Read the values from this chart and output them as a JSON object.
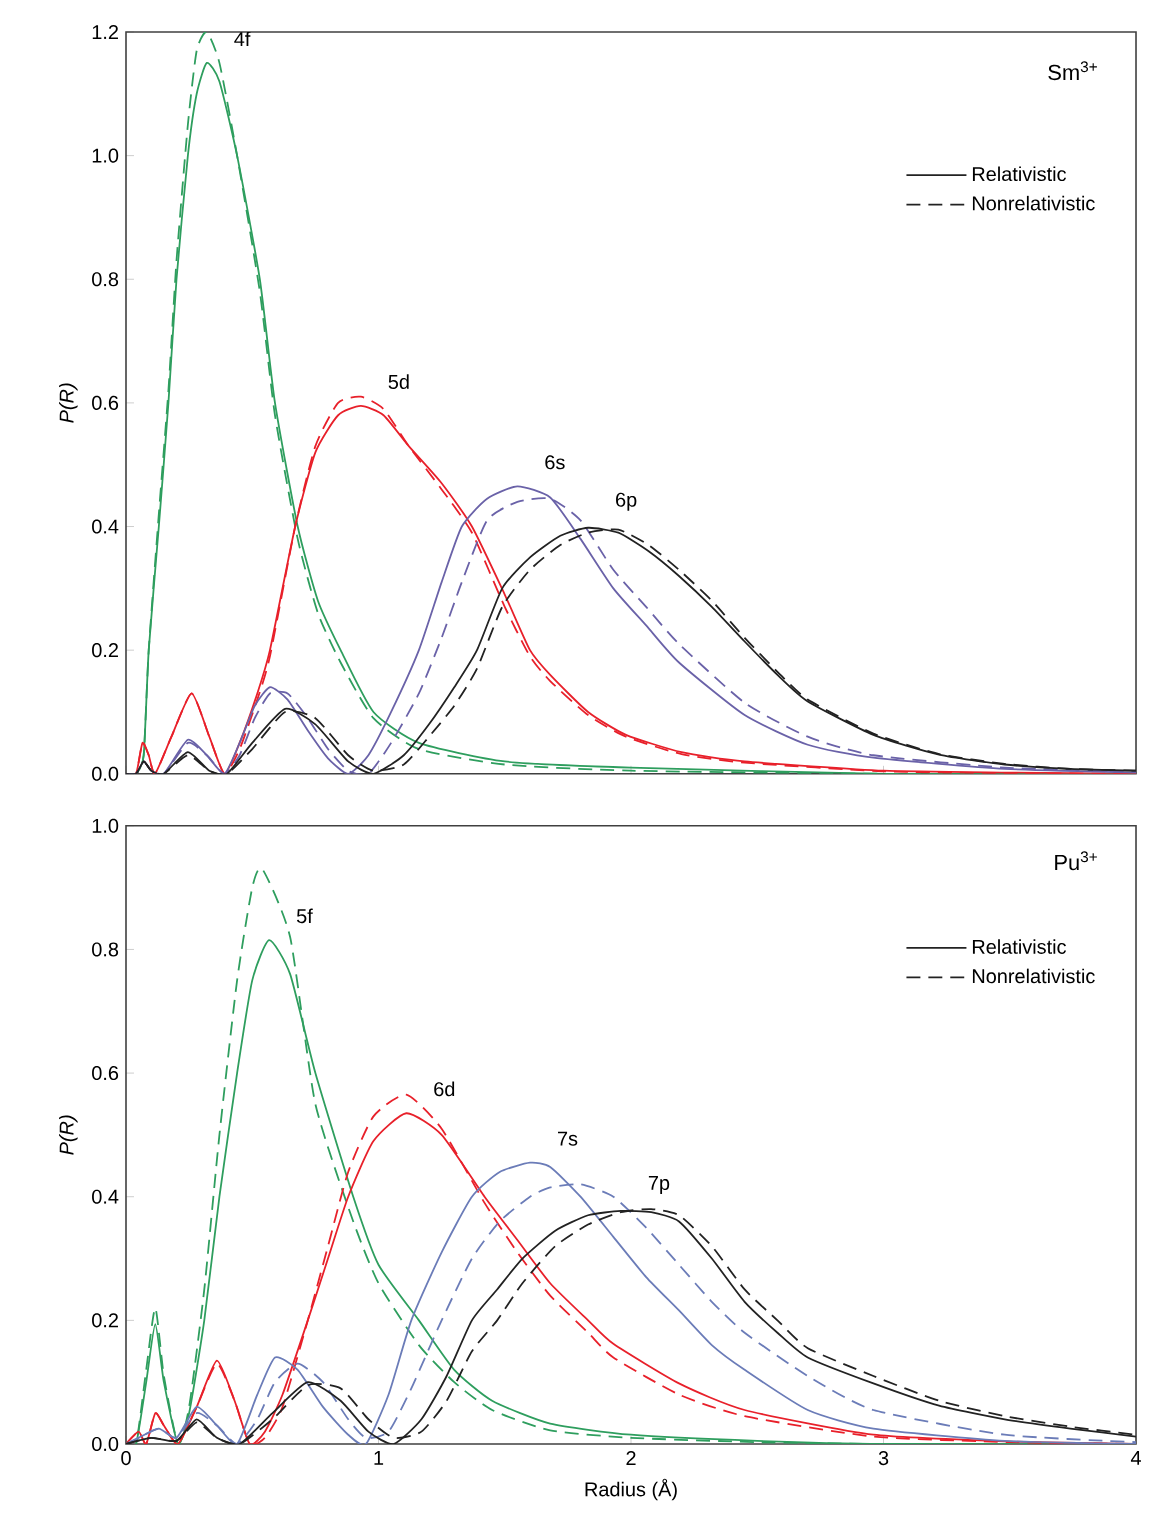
{
  "chart_data": [
    {
      "type": "line",
      "ylabel": "P(R)",
      "xlim": [
        0,
        4
      ],
      "ylim": [
        0,
        1.2
      ],
      "xticks": [
        0,
        1,
        2,
        3,
        4
      ],
      "tick_labels": "y",
      "legend": "top right",
      "yticks": [
        {
          "value": 0,
          "label": "0.0"
        },
        {
          "value": 0.2,
          "label": "0.2"
        },
        {
          "value": 0.4,
          "label": "0.4"
        },
        {
          "value": 0.6,
          "label": "0.6"
        },
        {
          "value": 0.8,
          "label": "0.8"
        },
        {
          "value": 1.0,
          "label": "1.0"
        },
        {
          "value": 1.2,
          "label": "1.2"
        }
      ],
      "annotations": [
        "Sm$^{3+}$",
        "4f",
        "5d",
        "6s",
        "6p"
      ],
      "series": [
        {
          "color": "#2e9e5e",
          "line_style": "solid",
          "x": [
            0,
            0.04,
            0.07,
            0.09,
            0.13,
            0.168,
            0.2,
            0.245,
            0.28,
            0.32,
            0.37,
            0.44,
            0.53,
            0.59,
            0.68,
            0.76,
            0.85,
            0.98,
            1.16,
            1.5,
            2.0,
            3.0,
            4.0
          ],
          "values": [
            0,
            0,
            0.03,
            0.2,
            0.4,
            0.6,
            0.8,
            1.0,
            1.1,
            1.15,
            1.12,
            1.0,
            0.8,
            0.6,
            0.4,
            0.28,
            0.2,
            0.1,
            0.05,
            0.02,
            0.01,
            0,
            0
          ]
        },
        {
          "color": "#2e9e5e",
          "line_style": "dashed",
          "x": [
            0,
            0.04,
            0.07,
            0.09,
            0.13,
            0.168,
            0.2,
            0.245,
            0.28,
            0.32,
            0.37,
            0.44,
            0.53,
            0.59,
            0.68,
            0.76,
            0.85,
            0.98,
            1.16,
            1.5,
            2.0,
            3.0,
            4.0
          ],
          "values": [
            0,
            0,
            0.03,
            0.2,
            0.42,
            0.62,
            0.83,
            1.05,
            1.17,
            1.2,
            1.15,
            1.0,
            0.78,
            0.58,
            0.38,
            0.26,
            0.18,
            0.09,
            0.04,
            0.015,
            0.005,
            0,
            0
          ]
        },
        {
          "color": "#e8202a",
          "line_style": "solid",
          "x": [
            0,
            0.04,
            0.065,
            0.09,
            0.115,
            0.18,
            0.26,
            0.33,
            0.39,
            0.45,
            0.52,
            0.57,
            0.67,
            0.75,
            0.84,
            0.93,
            1.02,
            1.12,
            1.25,
            1.37,
            1.5,
            1.6,
            1.68,
            1.83,
            1.98,
            2.2,
            2.45,
            3.0,
            3.5,
            4.0
          ],
          "values": [
            0,
            0,
            0.05,
            0.03,
            0,
            0.06,
            0.13,
            0.06,
            0,
            0.05,
            0.13,
            0.2,
            0.4,
            0.52,
            0.58,
            0.595,
            0.58,
            0.53,
            0.47,
            0.4,
            0.29,
            0.2,
            0.16,
            0.1,
            0.063,
            0.035,
            0.02,
            0.005,
            0.002,
            0
          ]
        },
        {
          "color": "#e8202a",
          "line_style": "dashed",
          "x": [
            0,
            0.04,
            0.065,
            0.09,
            0.115,
            0.18,
            0.26,
            0.33,
            0.39,
            0.45,
            0.52,
            0.57,
            0.67,
            0.75,
            0.84,
            0.93,
            1.02,
            1.12,
            1.25,
            1.37,
            1.5,
            1.6,
            1.68,
            1.83,
            1.98,
            2.2,
            2.45,
            3.0,
            3.5,
            4.0
          ],
          "values": [
            0,
            0,
            0.05,
            0.03,
            0,
            0.06,
            0.13,
            0.06,
            0,
            0.04,
            0.12,
            0.19,
            0.4,
            0.53,
            0.6,
            0.61,
            0.59,
            0.53,
            0.46,
            0.39,
            0.27,
            0.19,
            0.15,
            0.095,
            0.06,
            0.032,
            0.018,
            0.004,
            0.001,
            0
          ]
        },
        {
          "color": "#6a62a8",
          "line_style": "solid",
          "x": [
            0,
            0.04,
            0.07,
            0.1,
            0.15,
            0.245,
            0.32,
            0.39,
            0.45,
            0.51,
            0.57,
            0.64,
            0.72,
            0.8,
            0.88,
            0.96,
            1.05,
            1.16,
            1.25,
            1.33,
            1.43,
            1.55,
            1.68,
            1.8,
            1.93,
            2.06,
            2.19,
            2.45,
            2.7,
            2.96,
            3.48,
            4.0
          ],
          "values": [
            0,
            0,
            0.02,
            0.005,
            0,
            0.055,
            0.03,
            0,
            0.05,
            0.11,
            0.14,
            0.12,
            0.07,
            0.025,
            0,
            0.03,
            0.1,
            0.2,
            0.31,
            0.4,
            0.445,
            0.465,
            0.447,
            0.38,
            0.3,
            0.24,
            0.18,
            0.095,
            0.047,
            0.026,
            0.008,
            0.002
          ]
        },
        {
          "color": "#6a62a8",
          "line_style": "dashed",
          "x": [
            0,
            0.04,
            0.07,
            0.1,
            0.15,
            0.245,
            0.32,
            0.39,
            0.45,
            0.51,
            0.57,
            0.64,
            0.72,
            0.8,
            0.88,
            0.96,
            1.05,
            1.16,
            1.25,
            1.33,
            1.43,
            1.55,
            1.68,
            1.8,
            1.93,
            2.06,
            2.19,
            2.45,
            2.7,
            2.96,
            3.48,
            4.0
          ],
          "values": [
            0,
            0,
            0.02,
            0.005,
            0,
            0.05,
            0.03,
            0,
            0.03,
            0.09,
            0.13,
            0.13,
            0.09,
            0.04,
            0.005,
            0,
            0.05,
            0.13,
            0.22,
            0.31,
            0.41,
            0.44,
            0.445,
            0.41,
            0.33,
            0.27,
            0.21,
            0.115,
            0.06,
            0.03,
            0.01,
            0.003
          ]
        },
        {
          "name": "Relativistic",
          "color": "#222222",
          "line_style": "solid",
          "x": [
            0,
            0.04,
            0.07,
            0.1,
            0.15,
            0.245,
            0.33,
            0.4,
            0.5,
            0.63,
            0.75,
            0.88,
            0.98,
            1.1,
            1.2,
            1.3,
            1.39,
            1.49,
            1.6,
            1.72,
            1.83,
            1.95,
            2.07,
            2.19,
            2.32,
            2.45,
            2.58,
            2.7,
            2.96,
            3.22,
            3.48,
            3.74,
            4.0
          ],
          "values": [
            0,
            0,
            0.02,
            0.005,
            0,
            0.035,
            0.005,
            0,
            0.05,
            0.105,
            0.08,
            0.02,
            0,
            0.03,
            0.08,
            0.14,
            0.2,
            0.3,
            0.35,
            0.385,
            0.398,
            0.39,
            0.36,
            0.32,
            0.27,
            0.214,
            0.16,
            0.117,
            0.063,
            0.031,
            0.015,
            0.008,
            0.005
          ]
        },
        {
          "name": "Nonrelativistic",
          "color": "#222222",
          "line_style": "dashed",
          "x": [
            0,
            0.04,
            0.07,
            0.1,
            0.15,
            0.245,
            0.33,
            0.4,
            0.5,
            0.63,
            0.75,
            0.88,
            0.98,
            1.1,
            1.2,
            1.3,
            1.39,
            1.49,
            1.6,
            1.72,
            1.83,
            1.95,
            2.07,
            2.19,
            2.32,
            2.45,
            2.58,
            2.7,
            2.96,
            3.22,
            3.48,
            3.74,
            4.0
          ],
          "values": [
            0,
            0,
            0.02,
            0.005,
            0,
            0.03,
            0.005,
            0,
            0.04,
            0.1,
            0.09,
            0.03,
            0.005,
            0.015,
            0.06,
            0.11,
            0.17,
            0.27,
            0.33,
            0.37,
            0.39,
            0.395,
            0.37,
            0.33,
            0.28,
            0.22,
            0.165,
            0.12,
            0.065,
            0.032,
            0.016,
            0.008,
            0.005
          ]
        }
      ]
    },
    {
      "type": "line",
      "xlabel": "Radius (Å)",
      "ylabel": "P(R)",
      "xlim": [
        0,
        4
      ],
      "ylim": [
        0,
        1.0
      ],
      "xticks": [
        0,
        1,
        2,
        3,
        4
      ],
      "legend": "top right",
      "yticks": [
        {
          "value": 0,
          "label": "0.0"
        },
        {
          "value": 0.2,
          "label": "0.2"
        },
        {
          "value": 0.4,
          "label": "0.4"
        },
        {
          "value": 0.6,
          "label": "0.6"
        },
        {
          "value": 0.8,
          "label": "0.8"
        },
        {
          "value": 1.0,
          "label": "1.0"
        }
      ],
      "annotations": [
        "Pu$^{3+}$",
        "5f",
        "6d",
        "7s",
        "7p"
      ],
      "series": [
        {
          "color": "#2e9e5e",
          "line_style": "solid",
          "x": [
            0,
            0.04,
            0.08,
            0.116,
            0.15,
            0.206,
            0.25,
            0.31,
            0.37,
            0.44,
            0.5,
            0.567,
            0.65,
            0.75,
            0.9,
            1.0,
            1.16,
            1.3,
            1.45,
            1.68,
            2.0,
            2.5,
            3.0,
            4.0
          ],
          "values": [
            0,
            0,
            0.1,
            0.194,
            0.1,
            0,
            0.05,
            0.2,
            0.4,
            0.6,
            0.75,
            0.815,
            0.76,
            0.6,
            0.4,
            0.29,
            0.2,
            0.12,
            0.07,
            0.033,
            0.015,
            0.005,
            0,
            0
          ]
        },
        {
          "color": "#2e9e5e",
          "line_style": "dashed",
          "x": [
            0,
            0.04,
            0.08,
            0.116,
            0.15,
            0.206,
            0.25,
            0.31,
            0.37,
            0.44,
            0.5,
            0.54,
            0.65,
            0.75,
            0.9,
            1.0,
            1.16,
            1.3,
            1.45,
            1.68,
            2.0,
            2.5,
            3.0,
            4.0
          ],
          "values": [
            0,
            0,
            0.12,
            0.22,
            0.11,
            0,
            0.06,
            0.25,
            0.5,
            0.75,
            0.9,
            0.93,
            0.82,
            0.55,
            0.36,
            0.26,
            0.16,
            0.1,
            0.055,
            0.022,
            0.01,
            0.003,
            0,
            0
          ]
        },
        {
          "color": "#e8202a",
          "line_style": "solid",
          "x": [
            0,
            0.05,
            0.08,
            0.116,
            0.15,
            0.206,
            0.28,
            0.36,
            0.43,
            0.49,
            0.55,
            0.62,
            0.72,
            0.8,
            0.88,
            0.98,
            1.11,
            1.25,
            1.42,
            1.55,
            1.68,
            1.83,
            1.93,
            2.19,
            2.45,
            2.96,
            3.5,
            4.0
          ],
          "values": [
            0,
            0.02,
            0,
            0.05,
            0.03,
            0,
            0.06,
            0.135,
            0.07,
            0,
            0.02,
            0.08,
            0.2,
            0.3,
            0.4,
            0.49,
            0.535,
            0.5,
            0.4,
            0.33,
            0.26,
            0.2,
            0.162,
            0.098,
            0.055,
            0.015,
            0.004,
            0
          ]
        },
        {
          "color": "#e8202a",
          "line_style": "dashed",
          "x": [
            0,
            0.05,
            0.08,
            0.116,
            0.15,
            0.206,
            0.28,
            0.36,
            0.43,
            0.49,
            0.55,
            0.62,
            0.72,
            0.8,
            0.88,
            0.98,
            1.11,
            1.25,
            1.42,
            1.55,
            1.68,
            1.83,
            1.93,
            2.19,
            2.45,
            2.96,
            3.5,
            4.0
          ],
          "values": [
            0,
            0.02,
            0,
            0.05,
            0.03,
            0,
            0.06,
            0.13,
            0.07,
            0,
            0.01,
            0.06,
            0.2,
            0.32,
            0.44,
            0.53,
            0.565,
            0.51,
            0.39,
            0.31,
            0.24,
            0.18,
            0.14,
            0.08,
            0.045,
            0.012,
            0.003,
            0
          ]
        },
        {
          "color": "#6b7cb8",
          "line_style": "solid",
          "x": [
            0,
            0.05,
            0.13,
            0.2,
            0.28,
            0.36,
            0.44,
            0.52,
            0.59,
            0.68,
            0.78,
            0.88,
            0.95,
            1.04,
            1.13,
            1.25,
            1.37,
            1.48,
            1.6,
            1.68,
            1.8,
            1.93,
            2.06,
            2.19,
            2.32,
            2.45,
            2.7,
            2.96,
            3.48,
            4.0
          ],
          "values": [
            0,
            0.01,
            0.025,
            0.01,
            0.06,
            0.03,
            0,
            0.08,
            0.14,
            0.12,
            0.06,
            0.015,
            0,
            0.08,
            0.2,
            0.31,
            0.4,
            0.44,
            0.455,
            0.448,
            0.4,
            0.335,
            0.27,
            0.216,
            0.16,
            0.12,
            0.055,
            0.025,
            0.005,
            0
          ]
        },
        {
          "color": "#6b7cb8",
          "line_style": "dashed",
          "x": [
            0,
            0.05,
            0.13,
            0.2,
            0.28,
            0.36,
            0.44,
            0.52,
            0.59,
            0.68,
            0.78,
            0.88,
            0.95,
            1.04,
            1.13,
            1.25,
            1.37,
            1.48,
            1.6,
            1.68,
            1.8,
            1.93,
            2.06,
            2.19,
            2.32,
            2.45,
            2.7,
            2.96,
            3.48,
            4.0
          ],
          "values": [
            0,
            0.01,
            0.025,
            0.01,
            0.05,
            0.03,
            0,
            0.04,
            0.1,
            0.13,
            0.1,
            0.04,
            0.01,
            0.02,
            0.09,
            0.2,
            0.3,
            0.36,
            0.4,
            0.415,
            0.42,
            0.4,
            0.35,
            0.29,
            0.23,
            0.18,
            0.11,
            0.055,
            0.015,
            0.003
          ]
        },
        {
          "name": "Relativistic",
          "color": "#222222",
          "line_style": "solid",
          "x": [
            0,
            0.1,
            0.2,
            0.28,
            0.36,
            0.45,
            0.58,
            0.72,
            0.85,
            0.96,
            1.06,
            1.17,
            1.27,
            1.37,
            1.47,
            1.57,
            1.7,
            1.83,
            1.96,
            2.08,
            2.19,
            2.32,
            2.45,
            2.58,
            2.7,
            2.96,
            3.22,
            3.48,
            3.74,
            4.0
          ],
          "values": [
            0,
            0.01,
            0.005,
            0.04,
            0.01,
            0,
            0.05,
            0.1,
            0.07,
            0.02,
            0,
            0.04,
            0.11,
            0.2,
            0.25,
            0.3,
            0.345,
            0.37,
            0.377,
            0.375,
            0.36,
            0.3,
            0.23,
            0.18,
            0.14,
            0.098,
            0.062,
            0.04,
            0.025,
            0.012
          ]
        },
        {
          "name": "Nonrelativistic",
          "color": "#222222",
          "line_style": "dashed",
          "x": [
            0,
            0.1,
            0.2,
            0.28,
            0.36,
            0.45,
            0.58,
            0.72,
            0.85,
            0.96,
            1.06,
            1.17,
            1.27,
            1.37,
            1.47,
            1.57,
            1.7,
            1.83,
            1.96,
            2.08,
            2.19,
            2.32,
            2.45,
            2.58,
            2.7,
            2.96,
            3.22,
            3.48,
            3.74,
            4.0
          ],
          "values": [
            0,
            0.01,
            0.005,
            0.035,
            0.01,
            0,
            0.04,
            0.095,
            0.09,
            0.04,
            0.01,
            0.02,
            0.07,
            0.15,
            0.2,
            0.26,
            0.32,
            0.355,
            0.375,
            0.38,
            0.37,
            0.32,
            0.25,
            0.2,
            0.155,
            0.11,
            0.07,
            0.045,
            0.028,
            0.015
          ]
        }
      ]
    }
  ]
}
